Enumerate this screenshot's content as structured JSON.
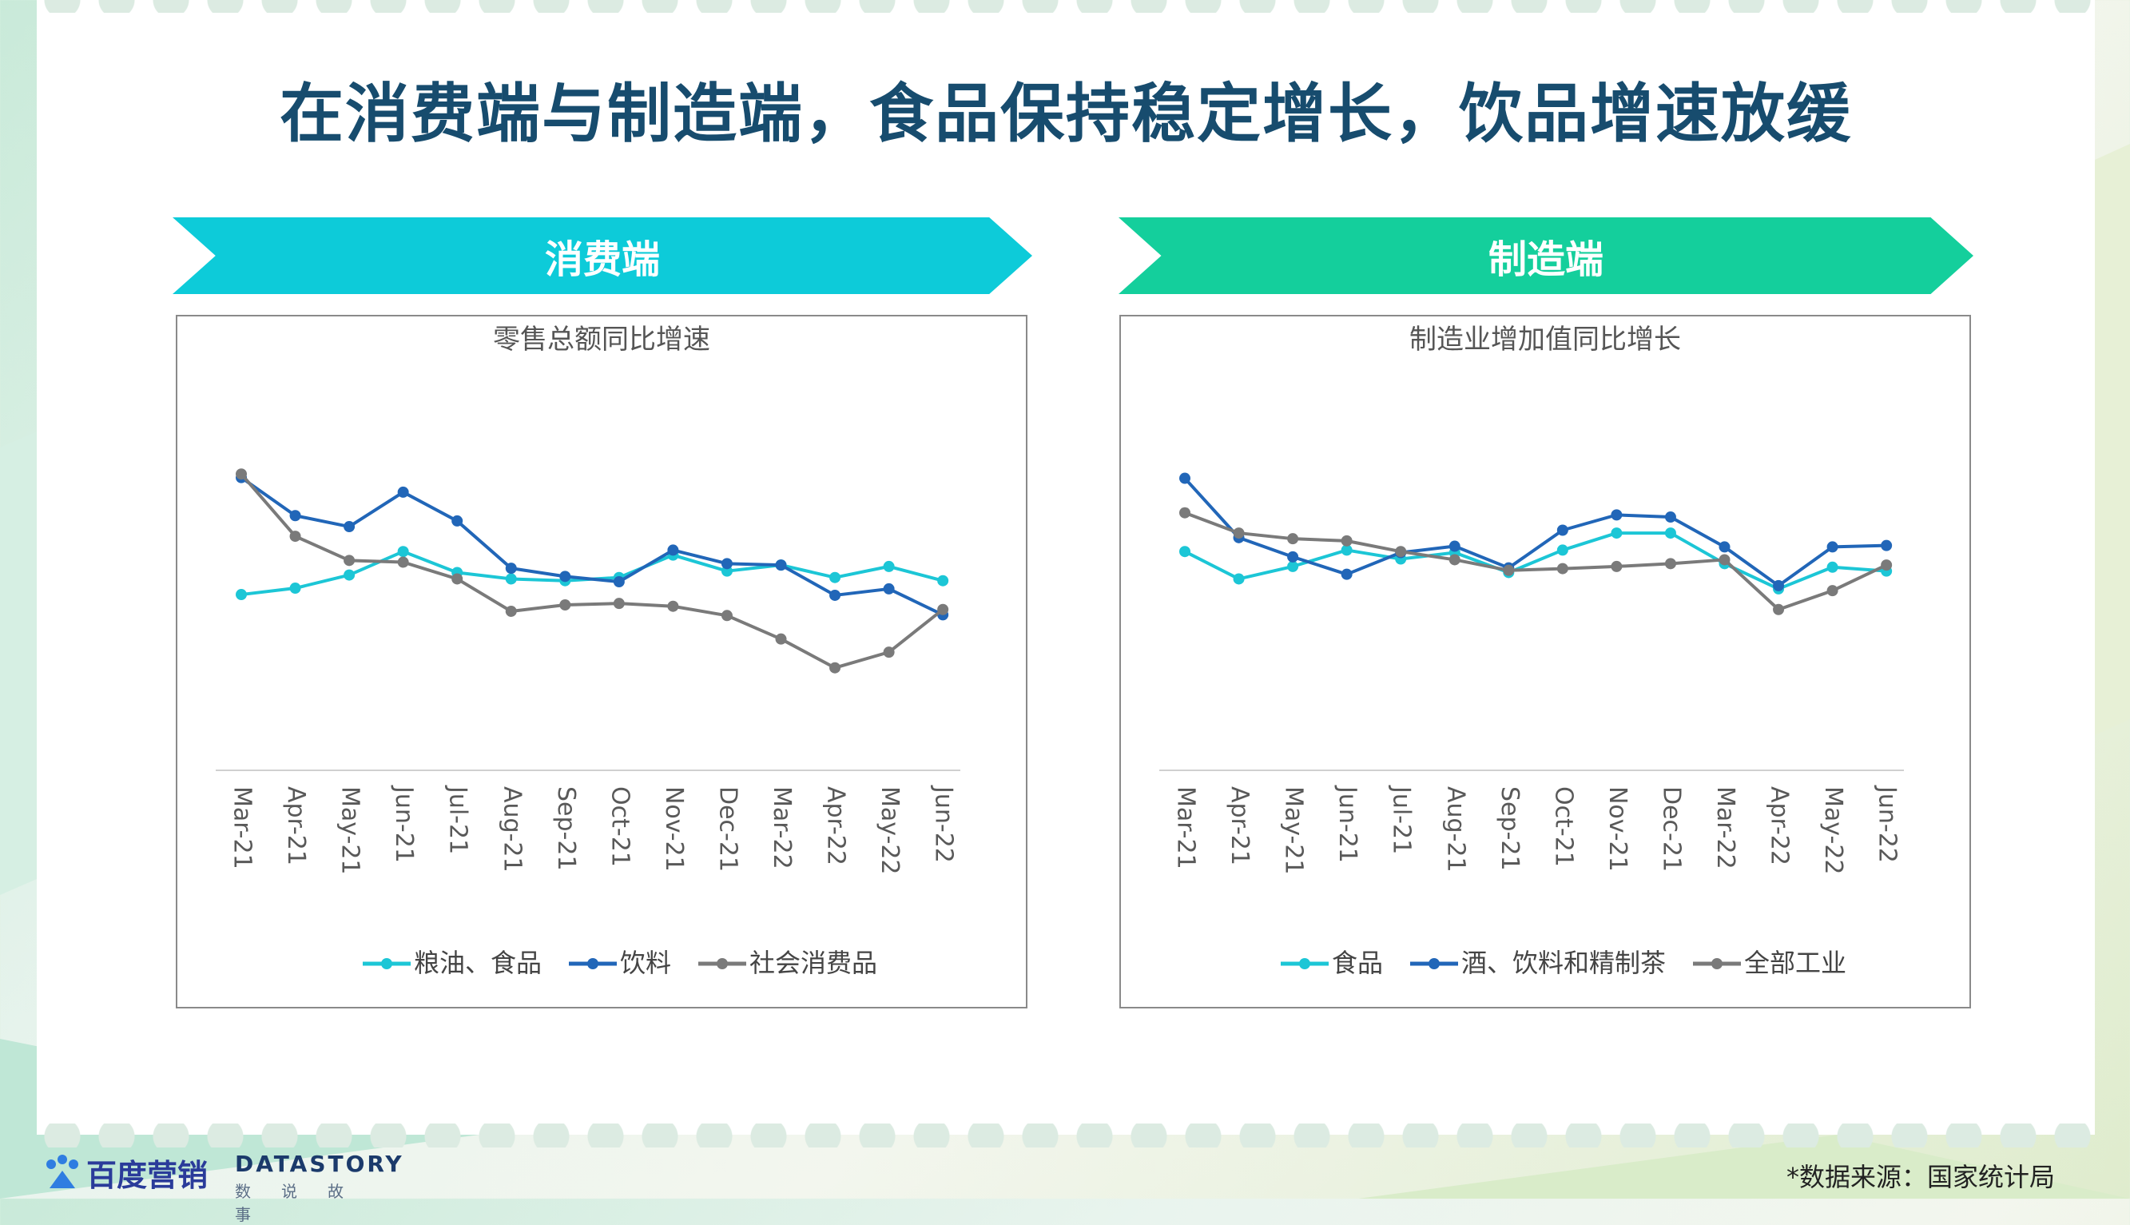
{
  "title": "在消费端与制造端，食品保持稳定增长，饮品增速放缓",
  "banners": {
    "left": "消费端",
    "right": "制造端"
  },
  "colors": {
    "cyan": "#1cc6d6",
    "blue": "#2166b8",
    "gray": "#7a7a7a"
  },
  "chart_data": [
    {
      "type": "line",
      "title": "零售总额同比增速",
      "categories": [
        "Mar-21",
        "Apr-21",
        "May-21",
        "Jun-21",
        "Jul-21",
        "Aug-21",
        "Sep-21",
        "Oct-21",
        "Nov-21",
        "Dec-21",
        "Mar-22",
        "Apr-22",
        "May-22",
        "Jun-22"
      ],
      "ylim": [
        0,
        100
      ],
      "grid": false,
      "legend_position": "bottom",
      "series": [
        {
          "name": "粮油、食品",
          "color": "#1cc6d6",
          "values": [
            51.0,
            52.8,
            56.5,
            63.1,
            57.2,
            55.4,
            54.9,
            55.8,
            62.1,
            57.6,
            59.3,
            55.8,
            58.9,
            54.9
          ]
        },
        {
          "name": "饮料",
          "color": "#2166b8",
          "values": [
            83.9,
            73.2,
            70.1,
            79.8,
            71.7,
            58.4,
            56.1,
            54.6,
            63.5,
            59.7,
            59.3,
            50.8,
            52.6,
            45.3
          ]
        },
        {
          "name": "社会消费品",
          "color": "#7a7a7a",
          "values": [
            84.9,
            67.4,
            60.6,
            60.1,
            55.4,
            46.3,
            48.1,
            48.5,
            47.7,
            45.1,
            38.5,
            30.4,
            34.8,
            46.8
          ]
        }
      ]
    },
    {
      "type": "line",
      "title": "制造业增加值同比增长",
      "categories": [
        "Mar-21",
        "Apr-21",
        "May-21",
        "Jun-21",
        "Jul-21",
        "Aug-21",
        "Sep-21",
        "Oct-21",
        "Nov-21",
        "Dec-21",
        "Mar-22",
        "Apr-22",
        "May-22",
        "Jun-22"
      ],
      "ylim": [
        0,
        100
      ],
      "grid": false,
      "legend_position": "bottom",
      "series": [
        {
          "name": "食品",
          "color": "#1cc6d6",
          "values": [
            63.1,
            55.4,
            58.9,
            63.5,
            61.0,
            62.8,
            57.2,
            63.5,
            68.3,
            68.3,
            59.7,
            52.6,
            58.7,
            57.6
          ]
        },
        {
          "name": "酒、饮料和精制茶",
          "color": "#2166b8",
          "values": [
            83.7,
            67.0,
            61.6,
            56.7,
            62.8,
            64.6,
            58.5,
            69.1,
            73.4,
            72.8,
            64.4,
            53.5,
            64.4,
            64.8
          ]
        },
        {
          "name": "全部工业",
          "color": "#7a7a7a",
          "values": [
            74.0,
            68.3,
            66.7,
            66.1,
            63.1,
            60.8,
            57.8,
            58.3,
            58.9,
            59.7,
            60.8,
            46.8,
            52.1,
            59.3
          ]
        }
      ]
    }
  ],
  "footer": {
    "baidu_logo": "百度营销",
    "datastory_logo": "DATASTORY",
    "datastory_sub": "数说故事",
    "source": "*数据来源：国家统计局"
  }
}
